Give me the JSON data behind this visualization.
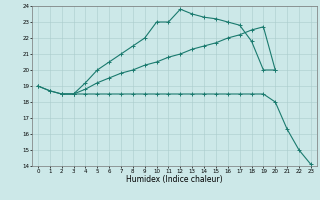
{
  "xlabel": "Humidex (Indice chaleur)",
  "bg_color": "#cce8e8",
  "grid_color": "#aacccc",
  "line_color": "#1a7a6e",
  "xlim": [
    -0.5,
    23.5
  ],
  "ylim": [
    14,
    24
  ],
  "yticks": [
    14,
    15,
    16,
    17,
    18,
    19,
    20,
    21,
    22,
    23,
    24
  ],
  "xticks": [
    0,
    1,
    2,
    3,
    4,
    5,
    6,
    7,
    8,
    9,
    10,
    11,
    12,
    13,
    14,
    15,
    16,
    17,
    18,
    19,
    20,
    21,
    22,
    23
  ],
  "curve1_x": [
    0,
    1,
    2,
    3,
    4,
    5,
    6,
    7,
    8,
    9,
    10,
    11,
    12,
    13,
    14,
    15,
    16,
    17,
    18,
    19,
    20,
    21,
    22,
    23
  ],
  "curve1_y": [
    19.0,
    18.7,
    18.5,
    18.5,
    18.5,
    18.5,
    18.5,
    18.5,
    18.5,
    18.5,
    18.5,
    18.5,
    18.5,
    18.5,
    18.5,
    18.5,
    18.5,
    18.5,
    18.5,
    18.5,
    18.0,
    16.3,
    15.0,
    14.1
  ],
  "curve2_x": [
    0,
    1,
    2,
    3,
    4,
    5,
    6,
    7,
    8,
    9,
    10,
    11,
    12,
    13,
    14,
    15,
    16,
    17,
    18,
    19,
    20
  ],
  "curve2_y": [
    19.0,
    18.7,
    18.5,
    18.5,
    19.2,
    20.0,
    20.5,
    21.0,
    21.5,
    22.0,
    23.0,
    23.0,
    23.8,
    23.5,
    23.3,
    23.2,
    23.0,
    22.8,
    21.8,
    20.0,
    20.0
  ],
  "curve3_x": [
    2,
    3,
    4,
    5,
    6,
    7,
    8,
    9,
    10,
    11,
    12,
    13,
    14,
    15,
    16,
    17,
    18,
    19,
    20
  ],
  "curve3_y": [
    18.5,
    18.5,
    18.8,
    19.2,
    19.5,
    19.8,
    20.0,
    20.3,
    20.5,
    20.8,
    21.0,
    21.3,
    21.5,
    21.7,
    22.0,
    22.2,
    22.5,
    22.7,
    20.0
  ]
}
